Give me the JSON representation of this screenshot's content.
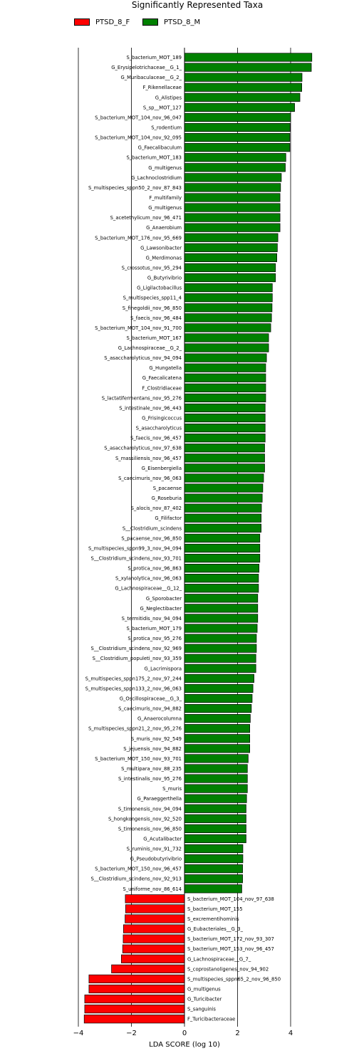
{
  "chart_data": {
    "type": "bar",
    "orientation": "horizontal",
    "title": "Significantly Represented Taxa",
    "xlabel": "LDA SCORE (log 10)",
    "ylabel": "",
    "xlim": [
      -4,
      5.4
    ],
    "xticks": [
      -4,
      -2,
      0,
      2,
      4
    ],
    "grid": "vertical",
    "legend_position": "top",
    "series": [
      {
        "name": "PTSD_8_F",
        "color": "#ff0000",
        "categories": [
          "S_bacterium_MOT_104_nov_97_638",
          "S_bacterium_MOT_155",
          "S_excrementihominis",
          "G_Eubacteriales__G_3_",
          "S_bacterium_MOT_172_nov_93_307",
          "S_bacterium_MOT_153_nov_96_457",
          "G_Lachnospiraceae__G_7_",
          "S_coprostanoligenes_nov_94_902",
          "S_multispecies_sppn65_2_nov_96_850",
          "G_multigenus",
          "G_Turicibacter",
          "S_sanguinis",
          "F_Turicibacteraceae"
        ],
        "values": [
          -2.23,
          -2.22,
          -2.24,
          -2.3,
          -2.31,
          -2.33,
          -2.38,
          -2.75,
          -3.6,
          -3.6,
          -3.76,
          -3.76,
          -3.78
        ]
      },
      {
        "name": "PTSD_8_M",
        "color": "#008000",
        "categories": [
          "S_bacterium_MOT_189",
          "G_Erysipelotrichaceae__G_1_",
          "G_Muribaculaceae__G_2_",
          "F_Rikenellaceae",
          "G_Alistipes",
          "S_sp__MOT_127",
          "S_bacterium_MOT_104_nov_96_047",
          "S_rodentium",
          "S_bacterium_MOT_104_nov_92_095",
          "G_Faecalibaculum",
          "S_bacterium_MOT_183",
          "G_multigenus",
          "G_Lachnoclostridium",
          "S_multispecies_sppn50_2_nov_87_843",
          "F_multifamily",
          "G_multigenus",
          "S_acetethylicum_nov_96_471",
          "G_Anaerobium",
          "S_bacterium_MOT_176_nov_95_669",
          "G_Lawsonibacter",
          "G_Merdimonas",
          "S_crossotus_nov_95_294",
          "G_Butyrivibrio",
          "G_Ligilactobacillus",
          "S_multispecies_spp11_4",
          "S_finegoldii_nov_96_850",
          "S_faecis_nov_96_484",
          "S_bacterium_MOT_104_nov_91_700",
          "S_bacterium_MOT_167",
          "G_Lachnospiraceae__G_2_",
          "S_asaccharolyticus_nov_94_094",
          "G_Hungatella",
          "G_Faecalicatena",
          "F_Clostridiaceae",
          "S_lactatifermentans_nov_95_276",
          "S_intestinale_nov_96_443",
          "G_Frisingicoccus",
          "S_asaccharolyticus",
          "S_faecis_nov_96_457",
          "S_asaccharolyticus_nov_97_638",
          "S_massiliensis_nov_96_457",
          "G_Eisenbergiella",
          "S_caecimuris_nov_96_063",
          "S_pacaense",
          "G_Roseburia",
          "S_alocis_nov_87_402",
          "G_Filifactor",
          "S__Clostridium_scindens",
          "S_pacaense_nov_96_850",
          "S_multispecies_sppn99_3_nov_94_094",
          "S__Clostridium_scindens_nov_93_701",
          "S_protica_nov_96_863",
          "S_xylanolytica_nov_96_063",
          "G_Lachnospiraceae__G_12_",
          "G_Sporobacter",
          "G_Neglectibacter",
          "S_termitidis_nov_94_094",
          "S_bacterium_MOT_179",
          "S_protica_nov_95_276",
          "S__Clostridium_scindens_nov_92_969",
          "S__Clostridium_populeti_nov_93_359",
          "G_Lacrimispora",
          "S_multispecies_sppn175_2_nov_97_244",
          "S_multispecies_sppn133_2_nov_96_063",
          "G_Oscillospiraceae__G_3_",
          "S_caecimuris_nov_94_882",
          "G_Anaerocolumna",
          "S_multispecies_sppn21_2_nov_95_276",
          "S_muris_nov_92_549",
          "S_jejuensis_nov_94_882",
          "S_bacterium_MOT_150_nov_93_701",
          "S_multipara_nov_88_235",
          "S_intestinalis_nov_95_276",
          "S_muris",
          "G_Paraeggerthella",
          "S_timonensis_nov_94_094",
          "S_hongkongensis_nov_92_520",
          "S_timonensis_nov_96_850",
          "G_Acutalibacter",
          "S_ruminis_nov_91_732",
          "G_Pseudobutyrivibrio",
          "S_bacterium_MOT_150_nov_96_457",
          "S__Clostridium_scindens_nov_92_913",
          "S_uniforme_nov_86_614"
        ],
        "values": [
          4.8,
          4.78,
          4.43,
          4.42,
          4.35,
          4.15,
          4.0,
          3.98,
          3.97,
          3.97,
          3.82,
          3.8,
          3.65,
          3.62,
          3.6,
          3.6,
          3.6,
          3.6,
          3.52,
          3.5,
          3.48,
          3.43,
          3.43,
          3.31,
          3.31,
          3.3,
          3.28,
          3.25,
          3.17,
          3.17,
          3.09,
          3.06,
          3.06,
          3.06,
          3.06,
          3.04,
          3.04,
          3.04,
          3.04,
          3.02,
          3.02,
          3.02,
          2.98,
          2.95,
          2.93,
          2.9,
          2.89,
          2.89,
          2.84,
          2.84,
          2.84,
          2.81,
          2.79,
          2.79,
          2.76,
          2.76,
          2.76,
          2.74,
          2.71,
          2.71,
          2.69,
          2.69,
          2.62,
          2.58,
          2.55,
          2.52,
          2.48,
          2.46,
          2.46,
          2.46,
          2.4,
          2.37,
          2.37,
          2.37,
          2.34,
          2.32,
          2.32,
          2.32,
          2.32,
          2.2,
          2.2,
          2.19,
          2.19,
          2.16
        ]
      }
    ]
  }
}
